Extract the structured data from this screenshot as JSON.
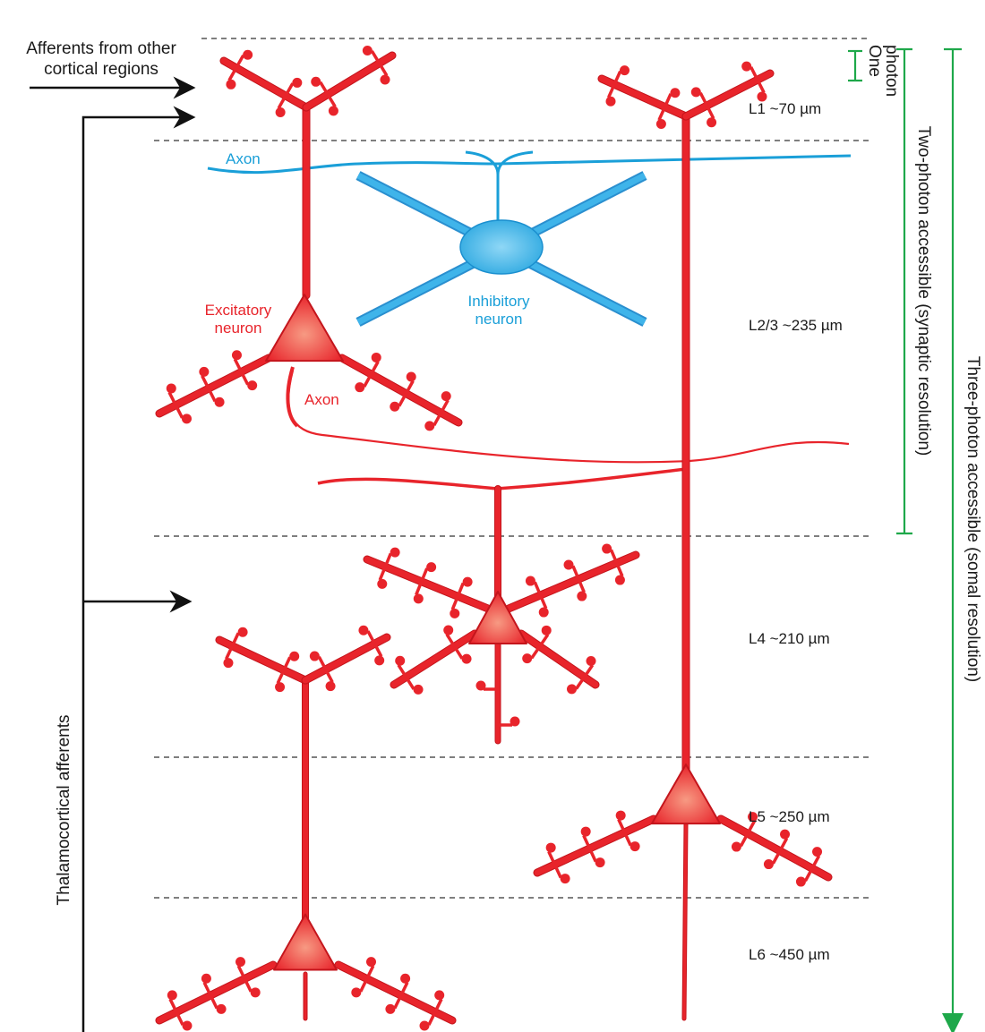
{
  "afferents": {
    "cortical": [
      "Afferents from other",
      "cortical regions"
    ],
    "thalamocortical": "Thalamocortical afferents"
  },
  "layers": [
    {
      "label": "L1 ~70 µm"
    },
    {
      "label": "L2/3 ~235 µm"
    },
    {
      "label": "L4 ~210 µm"
    },
    {
      "label": "L5 ~250 µm"
    },
    {
      "label": "L6 ~450 µm"
    }
  ],
  "neurons": {
    "excitatory": [
      "Excitatory",
      "neuron"
    ],
    "inhibitory": [
      "Inhibitory",
      "neuron"
    ],
    "axon_blue": "Axon",
    "axon_red": "Axon"
  },
  "ranges": {
    "one_photon": [
      "One",
      "photon"
    ],
    "two_photon": "Two-photon accessible (synaptic resolution)",
    "three_photon": "Three-photon accessible (somal resolution)"
  },
  "colors": {
    "excitatory": "#e8242b",
    "inhibitory": "#1a9fd8",
    "range_bracket": "#1ea84a",
    "layer_divider": "#333333"
  }
}
